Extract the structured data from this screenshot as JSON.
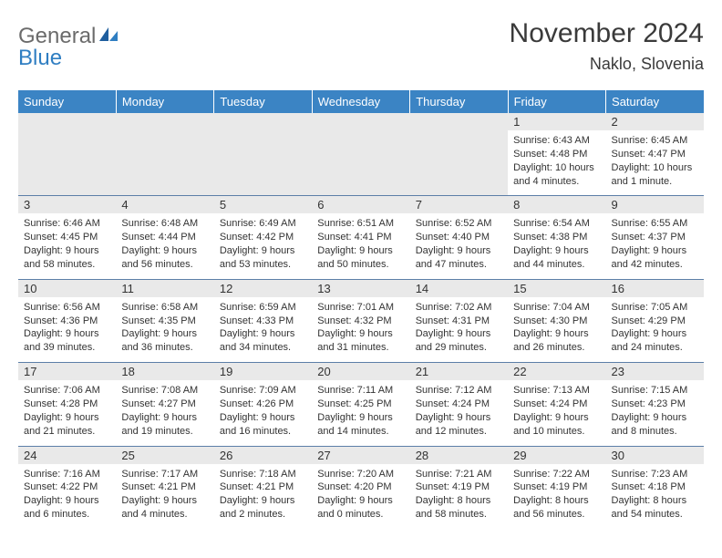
{
  "logo": {
    "part1": "General",
    "part2": "Blue"
  },
  "title": "November 2024",
  "location": "Naklo, Slovenia",
  "colors": {
    "header_bg": "#3b84c4",
    "header_text": "#ffffff",
    "day_band": "#e9e9e9",
    "cell_border": "#5c7fa8",
    "body_text": "#333333",
    "logo_gray": "#6b6b6b",
    "logo_blue": "#2f7ec2"
  },
  "typography": {
    "title_fontsize": 30,
    "location_fontsize": 18,
    "header_fontsize": 13,
    "daynum_fontsize": 13,
    "body_fontsize": 11
  },
  "columns": [
    "Sunday",
    "Monday",
    "Tuesday",
    "Wednesday",
    "Thursday",
    "Friday",
    "Saturday"
  ],
  "weeks": [
    [
      null,
      null,
      null,
      null,
      null,
      {
        "num": "1",
        "sunrise": "Sunrise: 6:43 AM",
        "sunset": "Sunset: 4:48 PM",
        "daylight": "Daylight: 10 hours and 4 minutes."
      },
      {
        "num": "2",
        "sunrise": "Sunrise: 6:45 AM",
        "sunset": "Sunset: 4:47 PM",
        "daylight": "Daylight: 10 hours and 1 minute."
      }
    ],
    [
      {
        "num": "3",
        "sunrise": "Sunrise: 6:46 AM",
        "sunset": "Sunset: 4:45 PM",
        "daylight": "Daylight: 9 hours and 58 minutes."
      },
      {
        "num": "4",
        "sunrise": "Sunrise: 6:48 AM",
        "sunset": "Sunset: 4:44 PM",
        "daylight": "Daylight: 9 hours and 56 minutes."
      },
      {
        "num": "5",
        "sunrise": "Sunrise: 6:49 AM",
        "sunset": "Sunset: 4:42 PM",
        "daylight": "Daylight: 9 hours and 53 minutes."
      },
      {
        "num": "6",
        "sunrise": "Sunrise: 6:51 AM",
        "sunset": "Sunset: 4:41 PM",
        "daylight": "Daylight: 9 hours and 50 minutes."
      },
      {
        "num": "7",
        "sunrise": "Sunrise: 6:52 AM",
        "sunset": "Sunset: 4:40 PM",
        "daylight": "Daylight: 9 hours and 47 minutes."
      },
      {
        "num": "8",
        "sunrise": "Sunrise: 6:54 AM",
        "sunset": "Sunset: 4:38 PM",
        "daylight": "Daylight: 9 hours and 44 minutes."
      },
      {
        "num": "9",
        "sunrise": "Sunrise: 6:55 AM",
        "sunset": "Sunset: 4:37 PM",
        "daylight": "Daylight: 9 hours and 42 minutes."
      }
    ],
    [
      {
        "num": "10",
        "sunrise": "Sunrise: 6:56 AM",
        "sunset": "Sunset: 4:36 PM",
        "daylight": "Daylight: 9 hours and 39 minutes."
      },
      {
        "num": "11",
        "sunrise": "Sunrise: 6:58 AM",
        "sunset": "Sunset: 4:35 PM",
        "daylight": "Daylight: 9 hours and 36 minutes."
      },
      {
        "num": "12",
        "sunrise": "Sunrise: 6:59 AM",
        "sunset": "Sunset: 4:33 PM",
        "daylight": "Daylight: 9 hours and 34 minutes."
      },
      {
        "num": "13",
        "sunrise": "Sunrise: 7:01 AM",
        "sunset": "Sunset: 4:32 PM",
        "daylight": "Daylight: 9 hours and 31 minutes."
      },
      {
        "num": "14",
        "sunrise": "Sunrise: 7:02 AM",
        "sunset": "Sunset: 4:31 PM",
        "daylight": "Daylight: 9 hours and 29 minutes."
      },
      {
        "num": "15",
        "sunrise": "Sunrise: 7:04 AM",
        "sunset": "Sunset: 4:30 PM",
        "daylight": "Daylight: 9 hours and 26 minutes."
      },
      {
        "num": "16",
        "sunrise": "Sunrise: 7:05 AM",
        "sunset": "Sunset: 4:29 PM",
        "daylight": "Daylight: 9 hours and 24 minutes."
      }
    ],
    [
      {
        "num": "17",
        "sunrise": "Sunrise: 7:06 AM",
        "sunset": "Sunset: 4:28 PM",
        "daylight": "Daylight: 9 hours and 21 minutes."
      },
      {
        "num": "18",
        "sunrise": "Sunrise: 7:08 AM",
        "sunset": "Sunset: 4:27 PM",
        "daylight": "Daylight: 9 hours and 19 minutes."
      },
      {
        "num": "19",
        "sunrise": "Sunrise: 7:09 AM",
        "sunset": "Sunset: 4:26 PM",
        "daylight": "Daylight: 9 hours and 16 minutes."
      },
      {
        "num": "20",
        "sunrise": "Sunrise: 7:11 AM",
        "sunset": "Sunset: 4:25 PM",
        "daylight": "Daylight: 9 hours and 14 minutes."
      },
      {
        "num": "21",
        "sunrise": "Sunrise: 7:12 AM",
        "sunset": "Sunset: 4:24 PM",
        "daylight": "Daylight: 9 hours and 12 minutes."
      },
      {
        "num": "22",
        "sunrise": "Sunrise: 7:13 AM",
        "sunset": "Sunset: 4:24 PM",
        "daylight": "Daylight: 9 hours and 10 minutes."
      },
      {
        "num": "23",
        "sunrise": "Sunrise: 7:15 AM",
        "sunset": "Sunset: 4:23 PM",
        "daylight": "Daylight: 9 hours and 8 minutes."
      }
    ],
    [
      {
        "num": "24",
        "sunrise": "Sunrise: 7:16 AM",
        "sunset": "Sunset: 4:22 PM",
        "daylight": "Daylight: 9 hours and 6 minutes."
      },
      {
        "num": "25",
        "sunrise": "Sunrise: 7:17 AM",
        "sunset": "Sunset: 4:21 PM",
        "daylight": "Daylight: 9 hours and 4 minutes."
      },
      {
        "num": "26",
        "sunrise": "Sunrise: 7:18 AM",
        "sunset": "Sunset: 4:21 PM",
        "daylight": "Daylight: 9 hours and 2 minutes."
      },
      {
        "num": "27",
        "sunrise": "Sunrise: 7:20 AM",
        "sunset": "Sunset: 4:20 PM",
        "daylight": "Daylight: 9 hours and 0 minutes."
      },
      {
        "num": "28",
        "sunrise": "Sunrise: 7:21 AM",
        "sunset": "Sunset: 4:19 PM",
        "daylight": "Daylight: 8 hours and 58 minutes."
      },
      {
        "num": "29",
        "sunrise": "Sunrise: 7:22 AM",
        "sunset": "Sunset: 4:19 PM",
        "daylight": "Daylight: 8 hours and 56 minutes."
      },
      {
        "num": "30",
        "sunrise": "Sunrise: 7:23 AM",
        "sunset": "Sunset: 4:18 PM",
        "daylight": "Daylight: 8 hours and 54 minutes."
      }
    ]
  ]
}
